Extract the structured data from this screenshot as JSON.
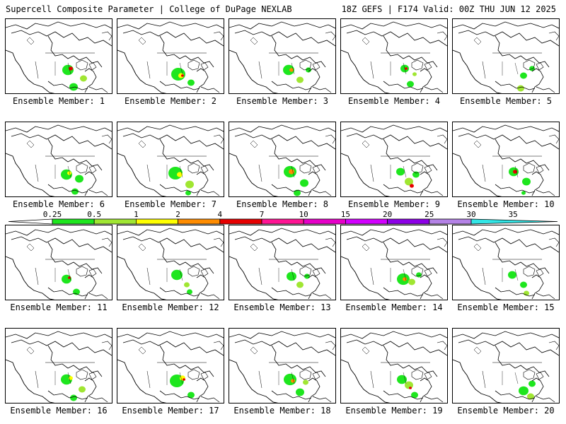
{
  "header": {
    "title": "Supercell Composite Parameter | College of DuPage NEXLAB",
    "run_info": "18Z GEFS | F174 Valid: 00Z THU JUN 12 2025"
  },
  "members": [
    {
      "label": "Ensemble Member: 1"
    },
    {
      "label": "Ensemble Member: 2"
    },
    {
      "label": "Ensemble Member: 3"
    },
    {
      "label": "Ensemble Member: 4"
    },
    {
      "label": "Ensemble Member: 5"
    },
    {
      "label": "Ensemble Member: 6"
    },
    {
      "label": "Ensemble Member: 7"
    },
    {
      "label": "Ensemble Member: 8"
    },
    {
      "label": "Ensemble Member: 9"
    },
    {
      "label": "Ensemble Member: 10"
    },
    {
      "label": "Ensemble Member: 11"
    },
    {
      "label": "Ensemble Member: 12"
    },
    {
      "label": "Ensemble Member: 13"
    },
    {
      "label": "Ensemble Member: 14"
    },
    {
      "label": "Ensemble Member: 15"
    },
    {
      "label": "Ensemble Member: 16"
    },
    {
      "label": "Ensemble Member: 17"
    },
    {
      "label": "Ensemble Member: 18"
    },
    {
      "label": "Ensemble Member: 19"
    },
    {
      "label": "Ensemble Member: 20"
    }
  ],
  "colorbar": {
    "labels": [
      "0.25",
      "0.5",
      "1",
      "2",
      "4",
      "7",
      "10",
      "15",
      "20",
      "25",
      "30",
      "35"
    ],
    "colors": [
      "#ffffff",
      "#1ee61e",
      "#a0e632",
      "#ffff00",
      "#ff8c00",
      "#e60000",
      "#ff1493",
      "#e600c8",
      "#d200ff",
      "#8c00e6",
      "#b482e6",
      "#32e6e6"
    ]
  }
}
